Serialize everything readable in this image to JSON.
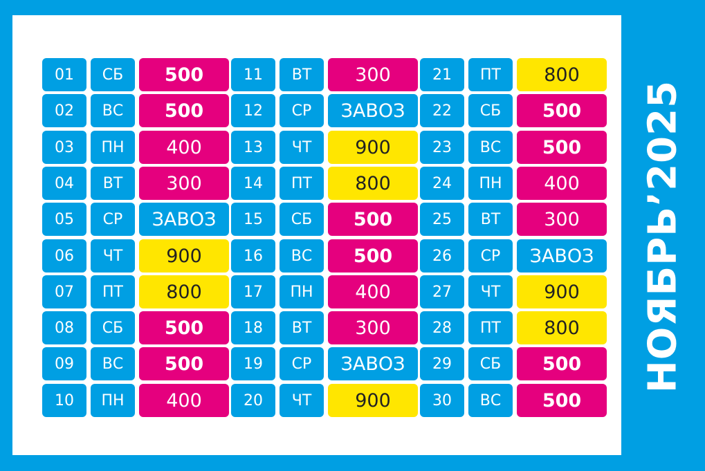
{
  "title": "НОЯБРЬ’2025",
  "colors": {
    "blue": "#009fe3",
    "pink": "#e5007e",
    "yellow": "#ffe600",
    "white": "#ffffff"
  },
  "days": [
    {
      "num": "01",
      "day": "СБ",
      "value": "500",
      "color": "pink",
      "bold": true
    },
    {
      "num": "02",
      "day": "ВС",
      "value": "500",
      "color": "pink",
      "bold": true
    },
    {
      "num": "03",
      "day": "ПН",
      "value": "400",
      "color": "pink",
      "bold": false
    },
    {
      "num": "04",
      "day": "ВТ",
      "value": "300",
      "color": "pink",
      "bold": false
    },
    {
      "num": "05",
      "day": "СР",
      "value": "ЗАВОЗ",
      "color": "blue",
      "bold": false
    },
    {
      "num": "06",
      "day": "ЧТ",
      "value": "900",
      "color": "yellow",
      "bold": false
    },
    {
      "num": "07",
      "day": "ПТ",
      "value": "800",
      "color": "yellow",
      "bold": false
    },
    {
      "num": "08",
      "day": "СБ",
      "value": "500",
      "color": "pink",
      "bold": true
    },
    {
      "num": "09",
      "day": "ВС",
      "value": "500",
      "color": "pink",
      "bold": true
    },
    {
      "num": "10",
      "day": "ПН",
      "value": "400",
      "color": "pink",
      "bold": false
    },
    {
      "num": "11",
      "day": "ВТ",
      "value": "300",
      "color": "pink",
      "bold": false
    },
    {
      "num": "12",
      "day": "СР",
      "value": "ЗАВОЗ",
      "color": "blue",
      "bold": false
    },
    {
      "num": "13",
      "day": "ЧТ",
      "value": "900",
      "color": "yellow",
      "bold": false
    },
    {
      "num": "14",
      "day": "ПТ",
      "value": "800",
      "color": "yellow",
      "bold": false
    },
    {
      "num": "15",
      "day": "СБ",
      "value": "500",
      "color": "pink",
      "bold": true
    },
    {
      "num": "16",
      "day": "ВС",
      "value": "500",
      "color": "pink",
      "bold": true
    },
    {
      "num": "17",
      "day": "ПН",
      "value": "400",
      "color": "pink",
      "bold": false
    },
    {
      "num": "18",
      "day": "ВТ",
      "value": "300",
      "color": "pink",
      "bold": false
    },
    {
      "num": "19",
      "day": "СР",
      "value": "ЗАВОЗ",
      "color": "blue",
      "bold": false
    },
    {
      "num": "20",
      "day": "ЧТ",
      "value": "900",
      "color": "yellow",
      "bold": false
    },
    {
      "num": "21",
      "day": "ПТ",
      "value": "800",
      "color": "yellow",
      "bold": false
    },
    {
      "num": "22",
      "day": "СБ",
      "value": "500",
      "color": "pink",
      "bold": true
    },
    {
      "num": "23",
      "day": "ВС",
      "value": "500",
      "color": "pink",
      "bold": true
    },
    {
      "num": "24",
      "day": "ПН",
      "value": "400",
      "color": "pink",
      "bold": false
    },
    {
      "num": "25",
      "day": "ВТ",
      "value": "300",
      "color": "pink",
      "bold": false
    },
    {
      "num": "26",
      "day": "СР",
      "value": "ЗАВОЗ",
      "color": "blue",
      "bold": false
    },
    {
      "num": "27",
      "day": "ЧТ",
      "value": "900",
      "color": "yellow",
      "bold": false
    },
    {
      "num": "28",
      "day": "ПТ",
      "value": "800",
      "color": "yellow",
      "bold": false
    },
    {
      "num": "29",
      "day": "СБ",
      "value": "500",
      "color": "pink",
      "bold": true
    },
    {
      "num": "30",
      "day": "ВС",
      "value": "500",
      "color": "pink",
      "bold": true
    }
  ]
}
